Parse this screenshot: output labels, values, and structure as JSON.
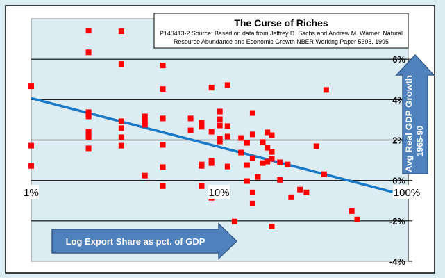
{
  "chart_data": {
    "type": "scatter",
    "title": "The Curse of Riches",
    "subtitle_lines": [
      "P140413-2 Source: Based on data from Jeffrey D. Sachs and Andrew M. Warner, Natural",
      "Resource Abundance and Economic Growth NBER Working Paper 5398, 1995"
    ],
    "xlabel": "Log Export Share as pct. of GDP",
    "ylabel": "Avg Real GDP Growth",
    "ylabel2": "1965-90",
    "x_scale": "log",
    "xlim": [
      1,
      100
    ],
    "ylim": [
      -4,
      8
    ],
    "x_ticks": [
      {
        "value": 1,
        "label": "1%"
      },
      {
        "value": 10,
        "label": "10%"
      },
      {
        "value": 100,
        "label": "100%"
      }
    ],
    "y_ticks": [
      {
        "value": 6,
        "label": "6%"
      },
      {
        "value": 4,
        "label": "4%"
      },
      {
        "value": 2,
        "label": "2%"
      },
      {
        "value": 0,
        "label": "0%"
      },
      {
        "value": -2,
        "label": "-2%"
      },
      {
        "value": -4,
        "label": "-4%"
      }
    ],
    "grid": true,
    "trendline": {
      "intercept_at_1pct": 4.07,
      "slope_per_decade": -2.41,
      "x_end": 84
    },
    "colors": {
      "points": "#ff0000",
      "trend": "#1a78c8",
      "arrow": "#4f81bd",
      "plot_bg": "#dbedf3"
    },
    "points": [
      [
        1.0,
        4.66
      ],
      [
        1.0,
        1.72
      ],
      [
        1.0,
        0.72
      ],
      [
        2.02,
        7.41
      ],
      [
        2.02,
        6.34
      ],
      [
        2.02,
        3.38
      ],
      [
        2.02,
        3.28
      ],
      [
        2.02,
        3.17
      ],
      [
        2.02,
        2.41
      ],
      [
        2.02,
        2.28
      ],
      [
        2.02,
        2.14
      ],
      [
        2.02,
        1.59
      ],
      [
        3.02,
        7.38
      ],
      [
        3.02,
        5.76
      ],
      [
        3.02,
        2.93
      ],
      [
        3.02,
        2.59
      ],
      [
        3.02,
        2.14
      ],
      [
        3.02,
        1.72
      ],
      [
        4.03,
        3.17
      ],
      [
        4.03,
        2.9
      ],
      [
        4.03,
        2.76
      ],
      [
        4.03,
        0.24
      ],
      [
        5.02,
        5.69
      ],
      [
        5.02,
        4.52
      ],
      [
        5.02,
        3.07
      ],
      [
        5.02,
        1.76
      ],
      [
        5.02,
        0.66
      ],
      [
        5.02,
        -0.28
      ],
      [
        7.06,
        3.07
      ],
      [
        7.06,
        2.48
      ],
      [
        8.08,
        2.86
      ],
      [
        8.08,
        2.66
      ],
      [
        8.08,
        0.79
      ],
      [
        8.08,
        0.72
      ],
      [
        8.08,
        -0.28
      ],
      [
        9.12,
        4.59
      ],
      [
        9.12,
        2.41
      ],
      [
        9.12,
        0.97
      ],
      [
        9.12,
        0.86
      ],
      [
        9.12,
        -0.86
      ],
      [
        10.1,
        3.41
      ],
      [
        10.1,
        3.03
      ],
      [
        10.1,
        2.72
      ],
      [
        10.1,
        2.07
      ],
      [
        10.1,
        1.93
      ],
      [
        11.1,
        4.72
      ],
      [
        11.1,
        2.69
      ],
      [
        11.1,
        2.17
      ],
      [
        11.1,
        0.69
      ],
      [
        12.1,
        -2.03
      ],
      [
        13.1,
        2.1
      ],
      [
        13.1,
        1.38
      ],
      [
        14.1,
        1.86
      ],
      [
        14.1,
        0.76
      ],
      [
        14.1,
        -0.03
      ],
      [
        15.1,
        3.34
      ],
      [
        15.1,
        2.28
      ],
      [
        15.1,
        1.1
      ],
      [
        15.1,
        -0.59
      ],
      [
        15.1,
        -1.14
      ],
      [
        16.1,
        0.17
      ],
      [
        17.1,
        1.9
      ],
      [
        17.1,
        0.86
      ],
      [
        18.1,
        2.38
      ],
      [
        18.1,
        1.62
      ],
      [
        18.1,
        0.93
      ],
      [
        19.1,
        2.24
      ],
      [
        19.1,
        1.41
      ],
      [
        19.1,
        1.07
      ],
      [
        19.1,
        -2.28
      ],
      [
        21.1,
        0.9
      ],
      [
        21.1,
        0.03
      ],
      [
        23.2,
        0.79
      ],
      [
        24.2,
        -0.83
      ],
      [
        27.0,
        -0.45
      ],
      [
        29.2,
        -0.59
      ],
      [
        33.0,
        1.69
      ],
      [
        36.3,
        0.31
      ],
      [
        37.2,
        4.48
      ],
      [
        50.9,
        -1.52
      ],
      [
        54.4,
        -1.93
      ]
    ]
  }
}
